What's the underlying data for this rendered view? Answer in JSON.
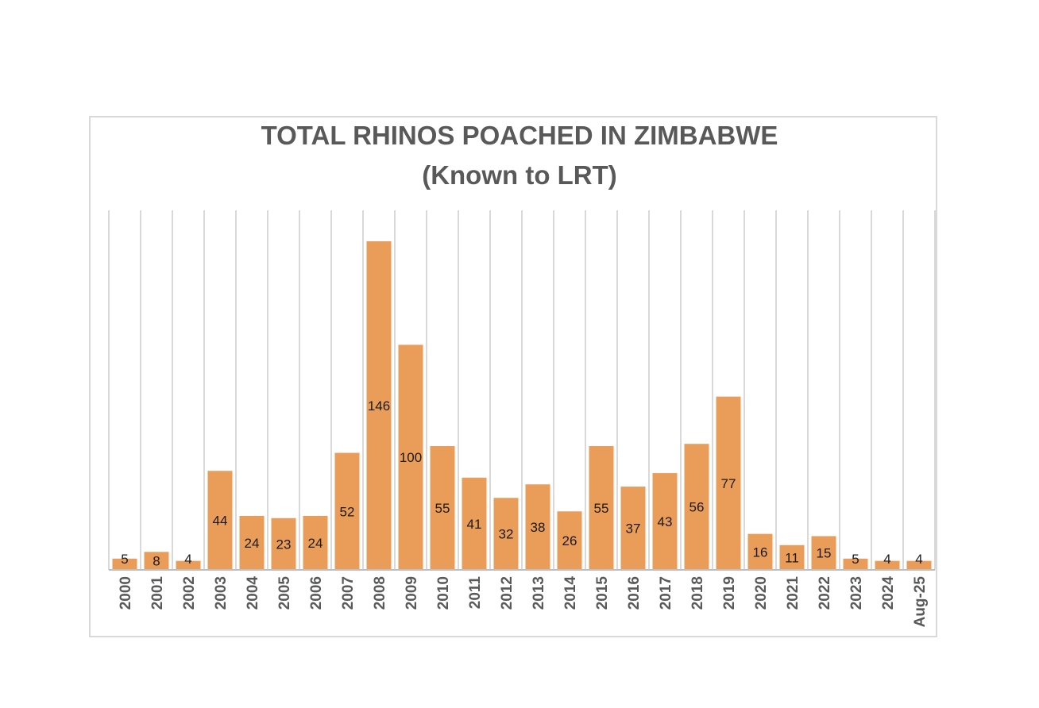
{
  "chart_data": {
    "type": "bar",
    "title": "TOTAL RHINOS POACHED IN ZIMBABWE",
    "subtitle": "(Known to LRT)",
    "xlabel": "",
    "ylabel": "",
    "categories": [
      "2000",
      "2001",
      "2002",
      "2003",
      "2004",
      "2005",
      "2006",
      "2007",
      "2008",
      "2009",
      "2010",
      "2011",
      "2012",
      "2013",
      "2014",
      "2015",
      "2016",
      "2017",
      "2018",
      "2019",
      "2020",
      "2021",
      "2022",
      "2023",
      "2024",
      "Aug-25"
    ],
    "values": [
      5,
      8,
      4,
      44,
      24,
      23,
      24,
      52,
      146,
      100,
      55,
      41,
      32,
      38,
      26,
      55,
      37,
      43,
      56,
      77,
      16,
      11,
      15,
      5,
      4,
      4
    ],
    "ylim": [
      0,
      146
    ],
    "grid": "vertical",
    "legend": "none",
    "colors": {
      "bar": "#e99d58",
      "grid": "#d9d9d9",
      "title": "#595959"
    }
  }
}
